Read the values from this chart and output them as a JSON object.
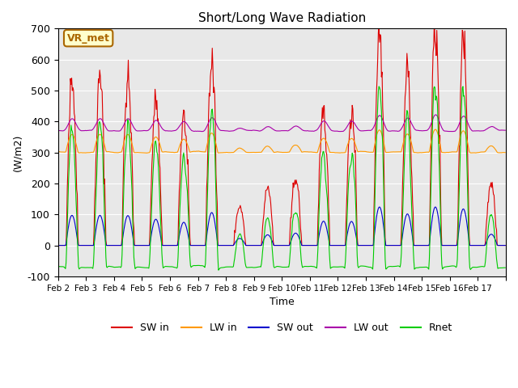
{
  "title": "Short/Long Wave Radiation",
  "xlabel": "Time",
  "ylabel": "(W/m2)",
  "ylim": [
    -100,
    700
  ],
  "yticks": [
    -100,
    0,
    100,
    200,
    300,
    400,
    500,
    600,
    700
  ],
  "colors": {
    "SW_in": "#dd0000",
    "LW_in": "#ff9900",
    "SW_out": "#0000cc",
    "LW_out": "#aa00aa",
    "Rnet": "#00cc00"
  },
  "legend_labels": [
    "SW in",
    "LW in",
    "SW out",
    "LW out",
    "Rnet"
  ],
  "annotation_text": "VR_met",
  "annotation_color": "#aa6600",
  "bg_color": "#e8e8e8",
  "fig_color": "#ffffff",
  "n_points": 720,
  "days": 16,
  "seed": 42,
  "day_peaks": [
    540,
    540,
    535,
    470,
    415,
    590,
    125,
    190,
    220,
    435,
    430,
    690,
    565,
    690,
    655,
    200
  ],
  "xtick_labels": [
    "Feb 2",
    "Feb 3",
    "Feb 4",
    "Feb 5",
    "Feb 6",
    "Feb 7",
    "Feb 8",
    "Feb 9",
    "Feb 10",
    "Feb 11",
    "Feb 12",
    "Feb 13",
    "Feb 14",
    "Feb 15",
    "Feb 16",
    "Feb 17"
  ]
}
